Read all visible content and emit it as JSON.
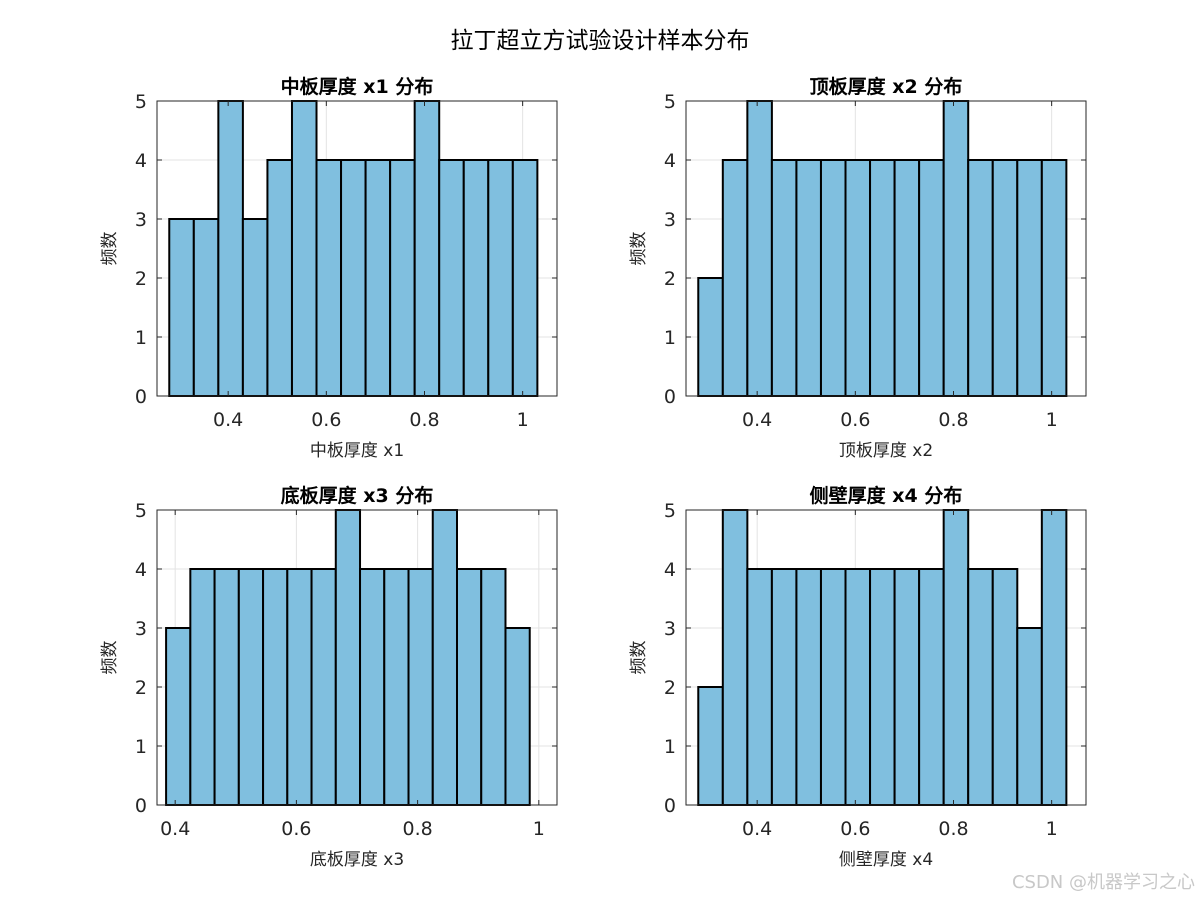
{
  "figure_title": "拉丁超立方试验设计样本分布",
  "watermark": "CSDN @机器学习之心",
  "colors": {
    "bar_fill": "#80bfdf",
    "bar_edge": "#000000",
    "grid": "#e3e3e3",
    "axis": "#262626"
  },
  "chart_data": [
    {
      "type": "bar",
      "title": "中板厚度 x1 分布",
      "xlabel": "中板厚度 x1",
      "ylabel": "频数",
      "x_ticks": [
        0.4,
        0.6,
        0.8,
        1
      ],
      "x_tick_labels": [
        "0.4",
        "0.6",
        "0.8",
        "1"
      ],
      "y_ticks": [
        0,
        1,
        2,
        3,
        4,
        5
      ],
      "y_tick_labels": [
        "0",
        "1",
        "2",
        "3",
        "4",
        "5"
      ],
      "xlim": [
        0.255,
        1.07
      ],
      "ylim": [
        0,
        5
      ],
      "grid": true,
      "bin_edges": [
        0.28,
        0.33,
        0.38,
        0.43,
        0.48,
        0.53,
        0.58,
        0.63,
        0.68,
        0.73,
        0.78,
        0.83,
        0.88,
        0.93,
        0.98,
        1.03
      ],
      "values": [
        3,
        3,
        5,
        3,
        4,
        5,
        4,
        4,
        4,
        4,
        5,
        4,
        4,
        4,
        4
      ]
    },
    {
      "type": "bar",
      "title": "顶板厚度 x2 分布",
      "xlabel": "顶板厚度 x2",
      "ylabel": "频数",
      "x_ticks": [
        0.4,
        0.6,
        0.8,
        1
      ],
      "x_tick_labels": [
        "0.4",
        "0.6",
        "0.8",
        "1"
      ],
      "y_ticks": [
        0,
        1,
        2,
        3,
        4,
        5
      ],
      "y_tick_labels": [
        "0",
        "1",
        "2",
        "3",
        "4",
        "5"
      ],
      "xlim": [
        0.255,
        1.07
      ],
      "ylim": [
        0,
        5
      ],
      "grid": true,
      "bin_edges": [
        0.28,
        0.33,
        0.38,
        0.43,
        0.48,
        0.53,
        0.58,
        0.63,
        0.68,
        0.73,
        0.78,
        0.83,
        0.88,
        0.93,
        0.98,
        1.03
      ],
      "values": [
        2,
        4,
        5,
        4,
        4,
        4,
        4,
        4,
        4,
        4,
        5,
        4,
        4,
        4,
        4
      ]
    },
    {
      "type": "bar",
      "title": "底板厚度 x3 分布",
      "xlabel": "底板厚度 x3",
      "ylabel": "频数",
      "x_ticks": [
        0.4,
        0.6,
        0.8,
        1
      ],
      "x_tick_labels": [
        "0.4",
        "0.6",
        "0.8",
        "1"
      ],
      "y_ticks": [
        0,
        1,
        2,
        3,
        4,
        5
      ],
      "y_tick_labels": [
        "0",
        "1",
        "2",
        "3",
        "4",
        "5"
      ],
      "xlim": [
        0.37,
        1.03
      ],
      "ylim": [
        0,
        5
      ],
      "grid": true,
      "bin_edges": [
        0.385,
        0.425,
        0.465,
        0.505,
        0.545,
        0.585,
        0.625,
        0.665,
        0.705,
        0.745,
        0.785,
        0.825,
        0.865,
        0.905,
        0.945,
        0.985
      ],
      "values": [
        3,
        4,
        4,
        4,
        4,
        4,
        4,
        5,
        4,
        4,
        4,
        5,
        4,
        4,
        3
      ]
    },
    {
      "type": "bar",
      "title": "侧壁厚度 x4 分布",
      "xlabel": "侧壁厚度 x4",
      "ylabel": "频数",
      "x_ticks": [
        0.4,
        0.6,
        0.8,
        1
      ],
      "x_tick_labels": [
        "0.4",
        "0.6",
        "0.8",
        "1"
      ],
      "y_ticks": [
        0,
        1,
        2,
        3,
        4,
        5
      ],
      "y_tick_labels": [
        "0",
        "1",
        "2",
        "3",
        "4",
        "5"
      ],
      "xlim": [
        0.255,
        1.07
      ],
      "ylim": [
        0,
        5
      ],
      "grid": true,
      "bin_edges": [
        0.28,
        0.33,
        0.38,
        0.43,
        0.48,
        0.53,
        0.58,
        0.63,
        0.68,
        0.73,
        0.78,
        0.83,
        0.88,
        0.93,
        0.98,
        1.03
      ],
      "values": [
        2,
        5,
        4,
        4,
        4,
        4,
        4,
        4,
        4,
        4,
        5,
        4,
        4,
        3,
        5
      ]
    }
  ]
}
